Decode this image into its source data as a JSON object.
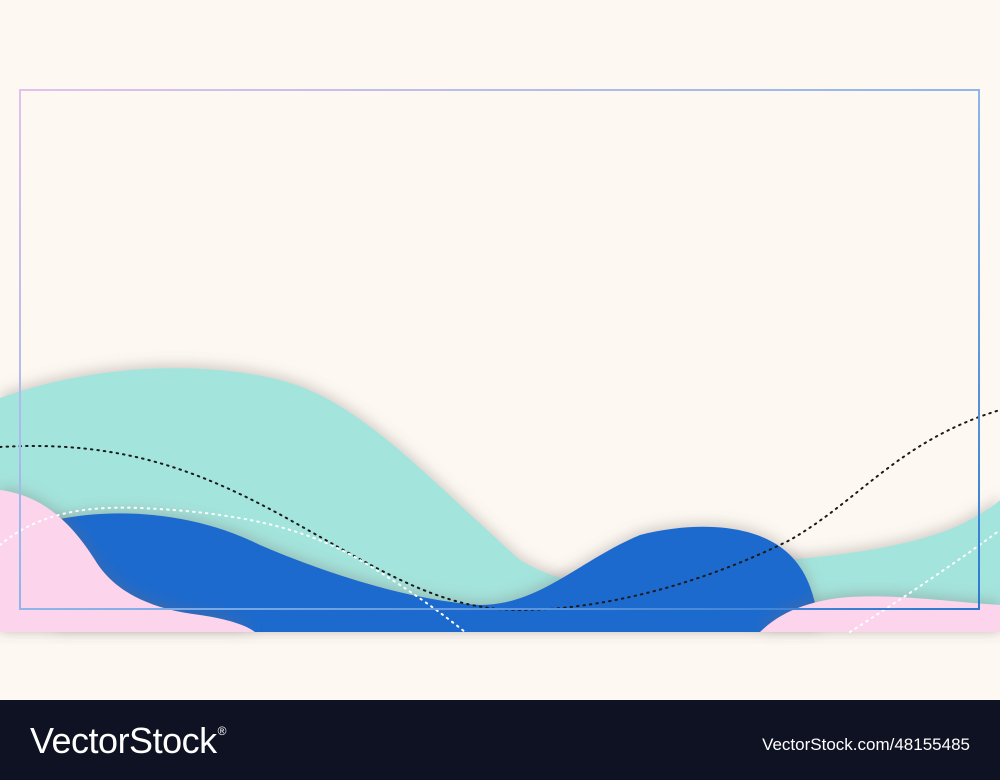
{
  "colors": {
    "background": "#fdf8f2",
    "mint": "#a3e4dc",
    "blue": "#1d6bce",
    "pink": "#fcd4ec",
    "footer": "#0f1222"
  },
  "footer": {
    "brand": "VectorStock",
    "registered": "®",
    "stock_id": "VectorStock.com/48155485"
  }
}
